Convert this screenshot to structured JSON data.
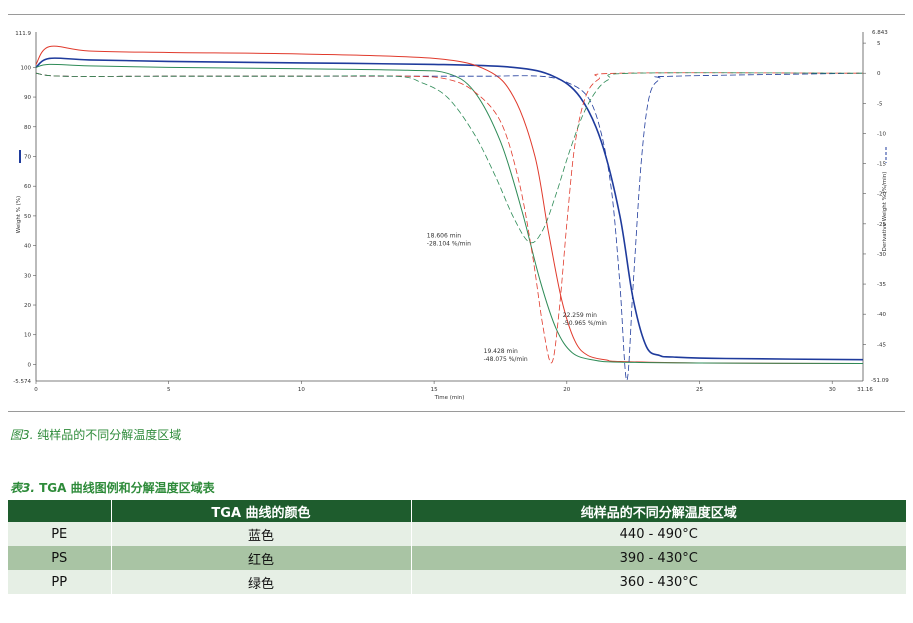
{
  "figure": {
    "caption_num": "图3.",
    "caption_text": "纯样品的不同分解温度区域"
  },
  "table": {
    "title_num": "表3.",
    "title_text": "TGA 曲线图例和分解温度区域表",
    "headers": [
      "",
      "TGA  曲线的颜色",
      "纯样品的不同分解温度区域"
    ],
    "rows": [
      [
        "PE",
        "蓝色",
        "440 - 490°C"
      ],
      [
        "PS",
        "红色",
        "390 - 430°C"
      ],
      [
        "PP",
        "绿色",
        "360 - 430°C"
      ]
    ]
  },
  "chart_data": {
    "type": "line",
    "xlabel": "Time (min)",
    "ylabel_left": "Weight % (%)",
    "ylabel_right": "Derivative Weight % (%/min)",
    "xlim": [
      0,
      31.16
    ],
    "ylim_left": [
      -5.574,
      111.9
    ],
    "ylim_right": [
      -51.09,
      6.843
    ],
    "x_ticks": [
      "0",
      "5",
      "10",
      "15",
      "20",
      "25",
      "30"
    ],
    "x_tick_values": [
      0,
      5,
      10,
      15,
      20,
      25,
      30
    ],
    "x_end_label": "31.16",
    "left_ticks": [
      "0",
      "10",
      "20",
      "30",
      "40",
      "50",
      "60",
      "70",
      "80",
      "90",
      "100"
    ],
    "left_tick_values": [
      0,
      10,
      20,
      30,
      40,
      50,
      60,
      70,
      80,
      90,
      100
    ],
    "left_end_labels": [
      "111.9",
      "-5.574"
    ],
    "right_ticks": [
      "5",
      "0",
      "-5",
      "-10",
      "-15",
      "-20",
      "-25",
      "-30",
      "-35",
      "-40",
      "-45"
    ],
    "right_tick_values": [
      5,
      0,
      -5,
      -10,
      -15,
      -20,
      -25,
      -30,
      -35,
      -40,
      -45
    ],
    "right_end_labels": [
      "6.843",
      "-51.09"
    ],
    "colors": {
      "PE": "#1f3b9c",
      "PS": "#e03a2c",
      "PP": "#2e8b57"
    },
    "series": [
      {
        "name": "PE",
        "kind": "weight",
        "x": [
          0,
          0.5,
          2,
          5,
          10,
          15,
          18,
          19.5,
          20.5,
          21.3,
          22.0,
          22.5,
          23.0,
          23.5,
          24,
          26,
          31.16
        ],
        "y": [
          100,
          103,
          102.5,
          102,
          101.5,
          101,
          100,
          97,
          90,
          75,
          50,
          22,
          6,
          3,
          2.5,
          2,
          1.6
        ]
      },
      {
        "name": "PS",
        "kind": "weight",
        "x": [
          0,
          0.5,
          2,
          5,
          10,
          15,
          17,
          18,
          18.8,
          19.3,
          19.8,
          20.3,
          20.8,
          21.5,
          22,
          25,
          31.16
        ],
        "y": [
          101,
          107,
          105.5,
          105,
          104.5,
          103,
          99,
          90,
          70,
          45,
          22,
          8,
          3,
          1.5,
          1,
          0.5,
          0.3
        ]
      },
      {
        "name": "PP",
        "kind": "weight",
        "x": [
          0,
          0.5,
          2,
          5,
          10,
          14,
          15.5,
          16.5,
          17.5,
          18.3,
          19,
          19.6,
          20.2,
          21,
          22,
          25,
          31.16
        ],
        "y": [
          100,
          101,
          100.5,
          100,
          99.5,
          99,
          98,
          92,
          75,
          52,
          28,
          12,
          4,
          1.5,
          0.8,
          0.5,
          0.3
        ]
      },
      {
        "name": "PE",
        "kind": "derivative",
        "x": [
          0,
          1,
          5,
          10,
          15,
          16,
          17,
          19,
          20,
          20.8,
          21.3,
          21.7,
          22.0,
          22.259,
          22.5,
          22.8,
          23.1,
          23.5,
          24,
          31.16
        ],
        "y": [
          0,
          -0.5,
          -0.5,
          -0.5,
          -0.5,
          -0.5,
          -0.5,
          -0.5,
          -1.5,
          -4,
          -10,
          -20,
          -35,
          -50.965,
          -35,
          -15,
          -4,
          -1,
          -0.5,
          0
        ]
      },
      {
        "name": "PS",
        "kind": "derivative",
        "x": [
          0,
          1,
          5,
          10,
          14,
          15.5,
          16.5,
          17.5,
          18.2,
          18.7,
          19.1,
          19.428,
          19.7,
          20.0,
          20.3,
          20.7,
          21.2,
          22,
          31.16
        ],
        "y": [
          0,
          -0.5,
          -0.5,
          -0.5,
          -0.5,
          -1,
          -3,
          -8,
          -18,
          -30,
          -42,
          -48.075,
          -40,
          -25,
          -12,
          -4,
          -1,
          0,
          0
        ]
      },
      {
        "name": "PP",
        "kind": "derivative",
        "x": [
          0,
          1,
          5,
          10,
          13.5,
          14.5,
          15.5,
          16.5,
          17.3,
          18.0,
          18.606,
          19.1,
          19.6,
          20.1,
          20.6,
          21.1,
          21.6,
          22.5,
          31.16
        ],
        "y": [
          0,
          -0.5,
          -0.5,
          -0.5,
          -0.5,
          -1.5,
          -4,
          -10,
          -17,
          -24,
          -28.104,
          -26,
          -20,
          -13,
          -7,
          -3,
          -1,
          0,
          0
        ]
      }
    ],
    "annotations": [
      {
        "text": [
          "18.606 min",
          "-28.104 %/min"
        ],
        "x": 18.606,
        "y": -28.104
      },
      {
        "text": [
          "19.428 min",
          "-48.075 %/min"
        ],
        "x": 19.428,
        "y": -48.075
      },
      {
        "text": [
          "22.259 min",
          "-50.965 %/min"
        ],
        "x": 22.259,
        "y": -50.965
      }
    ]
  }
}
